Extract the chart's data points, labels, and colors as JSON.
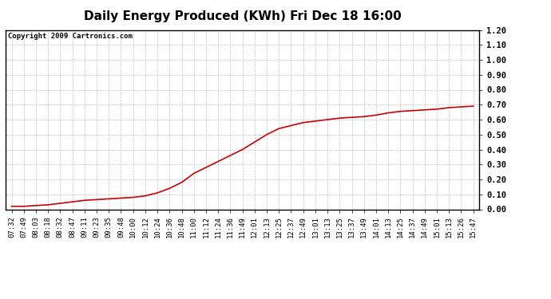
{
  "title": "Daily Energy Produced (KWh) Fri Dec 18 16:00",
  "copyright_text": "Copyright 2009 Cartronics.com",
  "line_color": "#cc0000",
  "background_color": "#ffffff",
  "plot_background": "#ffffff",
  "grid_color": "#bbbbbb",
  "ylim": [
    0.0,
    1.2
  ],
  "yticks": [
    0.0,
    0.1,
    0.2,
    0.3,
    0.4,
    0.5,
    0.6,
    0.7,
    0.8,
    0.9,
    1.0,
    1.1,
    1.2
  ],
  "x_labels": [
    "07:32",
    "07:49",
    "08:03",
    "08:18",
    "08:32",
    "08:47",
    "09:11",
    "09:23",
    "09:35",
    "09:48",
    "10:00",
    "10:12",
    "10:24",
    "10:36",
    "10:48",
    "11:00",
    "11:12",
    "11:24",
    "11:36",
    "11:49",
    "12:01",
    "12:13",
    "12:25",
    "12:37",
    "12:49",
    "13:01",
    "13:13",
    "13:25",
    "13:37",
    "13:49",
    "14:01",
    "14:13",
    "14:25",
    "14:37",
    "14:49",
    "15:01",
    "15:13",
    "15:26",
    "15:47"
  ],
  "y_values": [
    0.02,
    0.02,
    0.025,
    0.03,
    0.04,
    0.05,
    0.06,
    0.065,
    0.07,
    0.075,
    0.08,
    0.09,
    0.11,
    0.14,
    0.18,
    0.24,
    0.28,
    0.32,
    0.36,
    0.4,
    0.45,
    0.5,
    0.54,
    0.56,
    0.58,
    0.59,
    0.6,
    0.61,
    0.615,
    0.62,
    0.63,
    0.645,
    0.655,
    0.66,
    0.665,
    0.67,
    0.68,
    0.685,
    0.69
  ],
  "title_fontsize": 11,
  "tick_fontsize": 6.5,
  "copyright_fontsize": 6.5,
  "line_width": 1.2
}
